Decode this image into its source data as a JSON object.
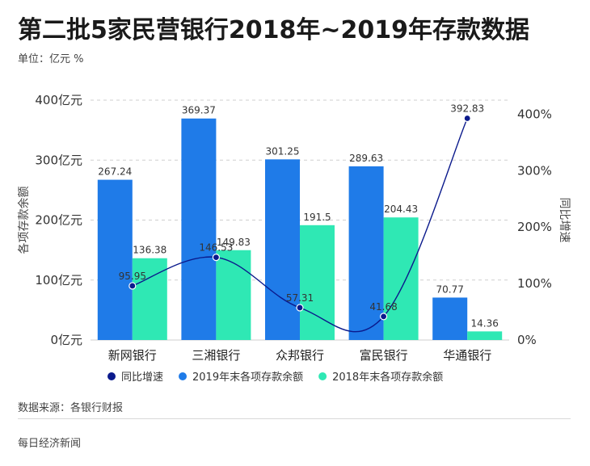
{
  "title": "第二批5家民营银行2018年~2019年存款数据",
  "unit_note": "单位：亿元 %",
  "source_note": "数据来源：各银行财报",
  "footer_brand": "每日经济新闻",
  "colors": {
    "bar_2019": "#1f7be8",
    "bar_2018": "#2fe8b4",
    "line_growth": "#0b1a8c"
  },
  "chart_data": {
    "type": "bar",
    "categories": [
      "新网银行",
      "三湘银行",
      "众邦银行",
      "富民银行",
      "华通银行"
    ],
    "series": [
      {
        "name": "2019年末各项存款余额",
        "values": [
          267.24,
          369.37,
          301.25,
          289.63,
          70.77
        ],
        "labels": [
          "267.24",
          "369.37",
          "301.25",
          "289.63",
          "70.77"
        ],
        "axis": "left"
      },
      {
        "name": "2018年末各项存款余额",
        "values": [
          136.38,
          149.83,
          191.5,
          204.43,
          14.36
        ],
        "labels": [
          "136.38",
          "149.83",
          "191.5",
          "204.43",
          "14.36"
        ],
        "axis": "left"
      },
      {
        "name": "同比增速",
        "values": [
          95.95,
          146.53,
          57.31,
          41.68,
          392.83
        ],
        "labels": [
          "95.95",
          "146.53",
          "57.31",
          "41.68",
          "392.83"
        ],
        "axis": "right",
        "type": "line"
      }
    ],
    "ylabel": "各项存款余额",
    "y2label": "同比增速",
    "ylim": [
      0,
      400
    ],
    "y2lim": [
      0,
      425
    ],
    "yticks": [
      0,
      100,
      200,
      300,
      400
    ],
    "ytick_labels": [
      "0亿元",
      "100亿元",
      "200亿元",
      "300亿元",
      "400亿元"
    ],
    "y2ticks": [
      0,
      100,
      200,
      300,
      400
    ],
    "y2tick_labels": [
      "0%",
      "100%",
      "200%",
      "300%",
      "400%"
    ],
    "legend_order": [
      "同比增速",
      "2019年末各项存款余额",
      "2018年末各项存款余额"
    ],
    "legend_position": "bottom",
    "grid": "horizontal-dashed"
  }
}
